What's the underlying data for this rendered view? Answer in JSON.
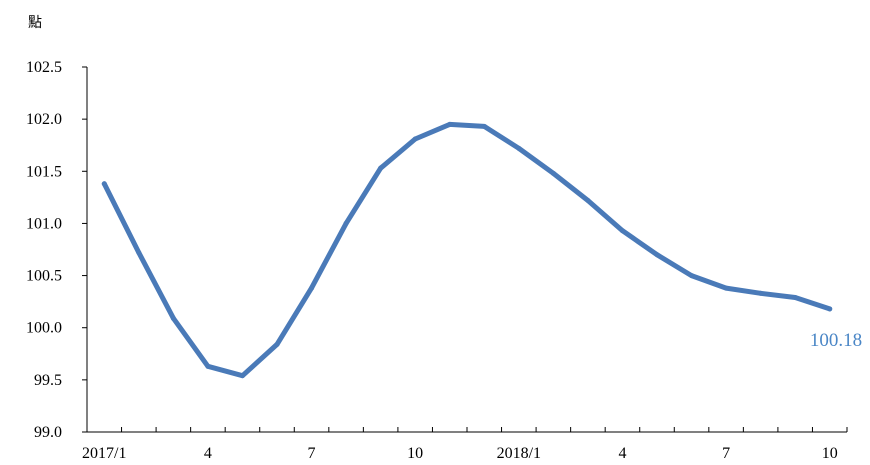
{
  "chart_data": {
    "type": "line",
    "ylabel": "點",
    "ylim": [
      99.0,
      102.5
    ],
    "yticks": [
      "99.0",
      "99.5",
      "100.0",
      "100.5",
      "101.0",
      "101.5",
      "102.0",
      "102.5"
    ],
    "x_tick_labels": [
      {
        "index": 0,
        "label": "2017/1"
      },
      {
        "index": 3,
        "label": "4"
      },
      {
        "index": 6,
        "label": "7"
      },
      {
        "index": 9,
        "label": "10"
      },
      {
        "index": 12,
        "label": "2018/1"
      },
      {
        "index": 15,
        "label": "4"
      },
      {
        "index": 18,
        "label": "7"
      },
      {
        "index": 21,
        "label": "10"
      }
    ],
    "x": [
      "2017/1",
      "2017/2",
      "2017/3",
      "2017/4",
      "2017/5",
      "2017/6",
      "2017/7",
      "2017/8",
      "2017/9",
      "2017/10",
      "2017/11",
      "2017/12",
      "2018/1",
      "2018/2",
      "2018/3",
      "2018/4",
      "2018/5",
      "2018/6",
      "2018/7",
      "2018/8",
      "2018/9",
      "2018/10"
    ],
    "series": [
      {
        "values": [
          101.38,
          100.72,
          100.09,
          99.63,
          99.54,
          99.84,
          100.38,
          101.0,
          101.53,
          101.81,
          101.95,
          101.93,
          101.72,
          101.48,
          101.22,
          100.93,
          100.7,
          100.5,
          100.38,
          100.33,
          100.29,
          100.18
        ],
        "color": "#4a7ab8"
      }
    ],
    "end_label": "100.18",
    "end_label_color": "#4a86c6",
    "grid": false,
    "legend": "none"
  }
}
